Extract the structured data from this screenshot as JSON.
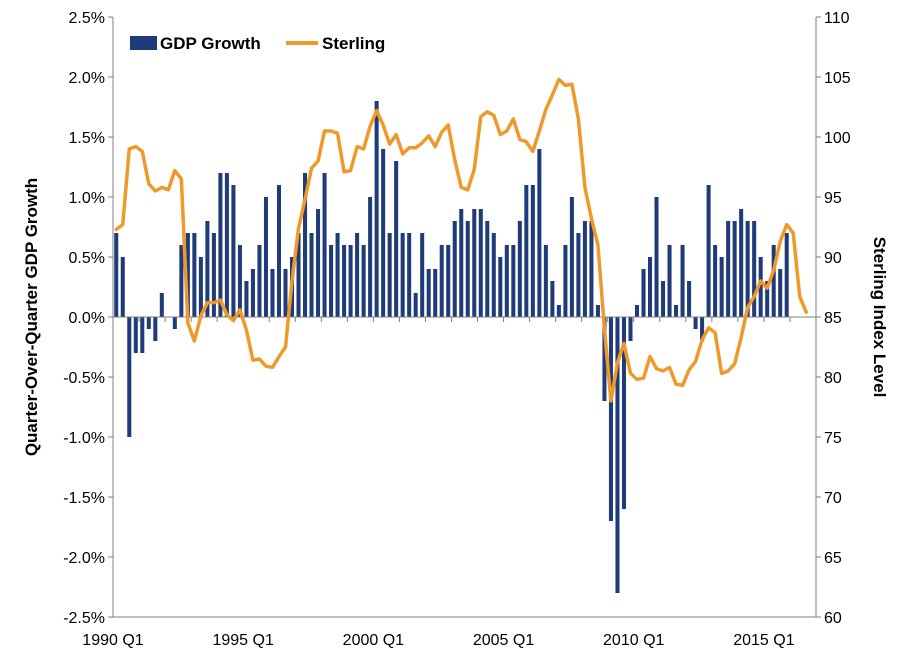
{
  "chart_data": {
    "type": "bar+line",
    "title": "",
    "x_tick_labels": [
      "1990 Q1",
      "1995 Q1",
      "2000 Q1",
      "2005 Q1",
      "2010 Q1",
      "2015 Q1"
    ],
    "y_left": {
      "label": "Quarter-Over-Quarter GDP Growth",
      "lim": [
        -2.5,
        2.5
      ],
      "ticks": [
        "2.5%",
        "2.0%",
        "1.5%",
        "1.0%",
        "0.5%",
        "0.0%",
        "-0.5%",
        "-1.0%",
        "-1.5%",
        "-2.0%",
        "-2.5%"
      ]
    },
    "y_right": {
      "label": "Sterling Index Level",
      "lim": [
        60,
        110
      ],
      "ticks": [
        "110",
        "105",
        "100",
        "95",
        "90",
        "85",
        "80",
        "75",
        "70",
        "65",
        "60"
      ]
    },
    "legend": {
      "placement": "top-left"
    },
    "series": [
      {
        "name": "GDP Growth",
        "type": "bar",
        "axis": "left",
        "color": "#1f3b7a",
        "start": "1990 Q1",
        "values": [
          0.7,
          0.5,
          -1.0,
          -0.3,
          -0.3,
          -0.1,
          -0.2,
          0.2,
          0.0,
          -0.1,
          0.6,
          0.7,
          0.7,
          0.5,
          0.8,
          0.7,
          1.2,
          1.2,
          1.1,
          0.6,
          0.3,
          0.4,
          0.6,
          1.0,
          0.4,
          1.1,
          0.4,
          0.5,
          0.7,
          1.2,
          0.7,
          0.9,
          1.2,
          0.6,
          0.7,
          0.6,
          0.6,
          0.7,
          0.6,
          1.0,
          1.8,
          1.4,
          0.7,
          1.3,
          0.7,
          0.7,
          0.2,
          0.7,
          0.4,
          0.4,
          0.6,
          0.6,
          0.8,
          0.9,
          0.8,
          0.9,
          0.9,
          0.8,
          0.7,
          0.5,
          0.6,
          0.6,
          0.8,
          1.1,
          1.1,
          1.4,
          0.6,
          0.3,
          0.1,
          0.6,
          1.0,
          0.7,
          0.8,
          0.8,
          0.1,
          -0.7,
          -1.7,
          -2.3,
          -1.6,
          -0.2,
          0.1,
          0.4,
          0.5,
          1.0,
          0.3,
          0.6,
          0.1,
          0.6,
          0.3,
          -0.1,
          -0.2,
          1.1,
          0.6,
          0.5,
          0.8,
          0.8,
          0.9,
          0.8,
          0.8,
          0.5,
          0.3,
          0.6,
          0.4,
          0.7
        ]
      },
      {
        "name": "Sterling",
        "type": "line",
        "axis": "right",
        "color": "#f0992b",
        "start": "1990 Q1",
        "values": [
          92.3,
          92.7,
          99.0,
          99.2,
          98.8,
          96.1,
          95.5,
          95.8,
          95.6,
          97.2,
          96.5,
          84.5,
          83.0,
          85.1,
          86.2,
          86.2,
          86.4,
          85.2,
          84.7,
          85.6,
          83.9,
          81.4,
          81.5,
          80.9,
          80.8,
          81.7,
          82.5,
          88.0,
          92.4,
          94.8,
          97.4,
          98.0,
          100.5,
          100.5,
          100.3,
          97.1,
          97.2,
          99.2,
          99.0,
          100.9,
          102.2,
          101.0,
          99.4,
          100.2,
          98.6,
          99.1,
          99.1,
          99.5,
          100.1,
          99.2,
          100.4,
          101.0,
          98.1,
          95.8,
          95.6,
          97.3,
          101.7,
          102.1,
          101.8,
          100.2,
          100.5,
          101.5,
          99.8,
          99.6,
          98.8,
          100.5,
          102.3,
          103.5,
          104.8,
          104.3,
          104.4,
          101.5,
          95.8,
          93.2,
          91.0,
          84.0,
          78.0,
          81.2,
          82.8,
          80.3,
          79.8,
          79.9,
          81.7,
          80.7,
          80.5,
          80.8,
          79.4,
          79.3,
          80.6,
          81.3,
          83.1,
          84.1,
          83.7,
          80.3,
          80.5,
          81.1,
          83.3,
          85.8,
          86.7,
          88.0,
          87.4,
          88.9,
          91.3,
          92.7,
          92.0,
          86.7,
          85.4
        ]
      }
    ]
  },
  "colors": {
    "bar": "#1f3b7a",
    "line": "#f0992b",
    "axis": "#7f7f7f"
  }
}
